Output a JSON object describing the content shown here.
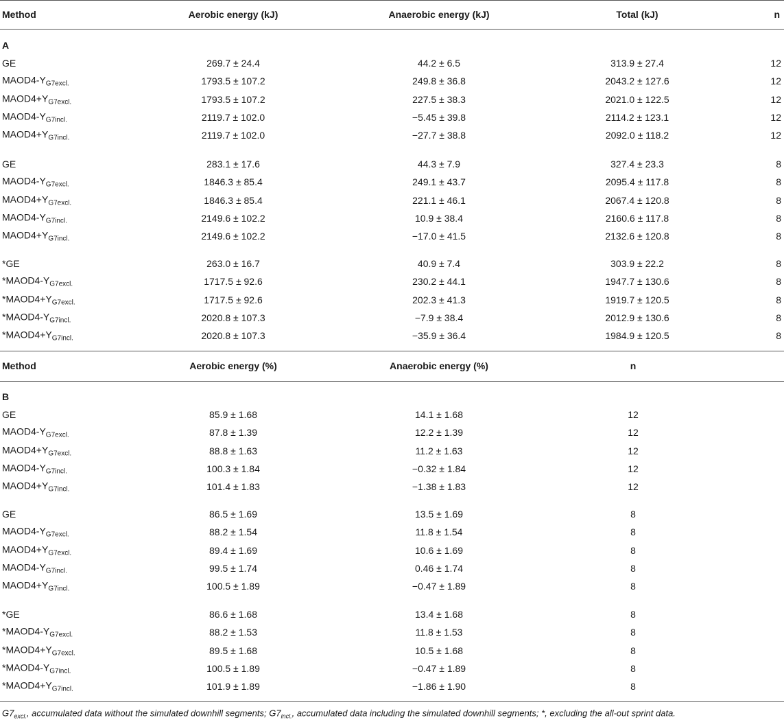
{
  "table_a": {
    "headers": [
      "Method",
      "Aerobic energy (kJ)",
      "Anaerobic energy (kJ)",
      "Total (kJ)",
      "n"
    ],
    "section_label": "A",
    "groups": [
      [
        {
          "prefix": "",
          "method": "GE",
          "sub": "",
          "aerobic": "269.7 ± 24.4",
          "anaerobic": "44.2 ± 6.5",
          "total": "313.9 ± 27.4",
          "n": "12"
        },
        {
          "prefix": "",
          "method": "MAOD4-Y",
          "sub": "G7excl.",
          "aerobic": "1793.5 ± 107.2",
          "anaerobic": "249.8 ± 36.8",
          "total": "2043.2 ± 127.6",
          "n": "12"
        },
        {
          "prefix": "",
          "method": "MAOD4+Y",
          "sub": "G7excl.",
          "aerobic": "1793.5 ± 107.2",
          "anaerobic": "227.5 ± 38.3",
          "total": "2021.0 ± 122.5",
          "n": "12"
        },
        {
          "prefix": "",
          "method": "MAOD4-Y",
          "sub": "G7incl.",
          "aerobic": "2119.7 ± 102.0",
          "anaerobic": "−5.45 ± 39.8",
          "total": "2114.2 ± 123.1",
          "n": "12"
        },
        {
          "prefix": "",
          "method": "MAOD4+Y",
          "sub": "G7incl.",
          "aerobic": "2119.7 ± 102.0",
          "anaerobic": "−27.7 ± 38.8",
          "total": "2092.0 ± 118.2",
          "n": "12"
        }
      ],
      [
        {
          "prefix": "",
          "method": "GE",
          "sub": "",
          "aerobic": "283.1 ± 17.6",
          "anaerobic": "44.3 ± 7.9",
          "total": "327.4 ± 23.3",
          "n": "8"
        },
        {
          "prefix": "",
          "method": "MAOD4-Y",
          "sub": "G7excl.",
          "aerobic": "1846.3 ± 85.4",
          "anaerobic": "249.1 ± 43.7",
          "total": "2095.4 ± 117.8",
          "n": "8"
        },
        {
          "prefix": "",
          "method": "MAOD4+Y",
          "sub": "G7excl.",
          "aerobic": "1846.3 ± 85.4",
          "anaerobic": "221.1 ± 46.1",
          "total": "2067.4 ± 120.8",
          "n": "8"
        },
        {
          "prefix": "",
          "method": "MAOD4-Y",
          "sub": "G7incl.",
          "aerobic": "2149.6 ± 102.2",
          "anaerobic": "10.9 ± 38.4",
          "total": "2160.6 ± 117.8",
          "n": "8"
        },
        {
          "prefix": "",
          "method": "MAOD4+Y",
          "sub": "G7incl.",
          "aerobic": "2149.6 ± 102.2",
          "anaerobic": "−17.0 ± 41.5",
          "total": "2132.6 ± 120.8",
          "n": "8"
        }
      ],
      [
        {
          "prefix": "*",
          "method": "GE",
          "sub": "",
          "aerobic": "263.0 ± 16.7",
          "anaerobic": "40.9 ± 7.4",
          "total": "303.9 ± 22.2",
          "n": "8"
        },
        {
          "prefix": "*",
          "method": "MAOD4-Y",
          "sub": "G7excl.",
          "aerobic": "1717.5 ± 92.6",
          "anaerobic": "230.2 ± 44.1",
          "total": "1947.7 ± 130.6",
          "n": "8"
        },
        {
          "prefix": "*",
          "method": "MAOD4+Y",
          "sub": "G7excl.",
          "aerobic": "1717.5 ± 92.6",
          "anaerobic": "202.3 ± 41.3",
          "total": "1919.7 ± 120.5",
          "n": "8"
        },
        {
          "prefix": "*",
          "method": "MAOD4-Y",
          "sub": "G7incl.",
          "aerobic": "2020.8 ± 107.3",
          "anaerobic": "−7.9 ± 38.4",
          "total": "2012.9 ± 130.6",
          "n": "8"
        },
        {
          "prefix": "*",
          "method": "MAOD4+Y",
          "sub": "G7incl.",
          "aerobic": "2020.8 ± 107.3",
          "anaerobic": "−35.9 ± 36.4",
          "total": "1984.9 ± 120.5",
          "n": "8"
        }
      ]
    ]
  },
  "table_b": {
    "headers": [
      "Method",
      "Aerobic energy (%)",
      "Anaerobic energy (%)",
      "n"
    ],
    "section_label": "B",
    "groups": [
      [
        {
          "prefix": "",
          "method": "GE",
          "sub": "",
          "aerobic": "85.9 ± 1.68",
          "anaerobic": "14.1 ± 1.68",
          "n": "12"
        },
        {
          "prefix": "",
          "method": "MAOD4-Y",
          "sub": "G7excl.",
          "aerobic": "87.8 ± 1.39",
          "anaerobic": "12.2 ± 1.39",
          "n": "12"
        },
        {
          "prefix": "",
          "method": "MAOD4+Y",
          "sub": "G7excl.",
          "aerobic": "88.8 ± 1.63",
          "anaerobic": "11.2 ± 1.63",
          "n": "12"
        },
        {
          "prefix": "",
          "method": "MAOD4-Y",
          "sub": "G7incl.",
          "aerobic": "100.3 ± 1.84",
          "anaerobic": "−0.32 ± 1.84",
          "n": "12"
        },
        {
          "prefix": "",
          "method": "MAOD4+Y",
          "sub": "G7incl.",
          "aerobic": "101.4 ± 1.83",
          "anaerobic": "−1.38 ± 1.83",
          "n": "12"
        }
      ],
      [
        {
          "prefix": "",
          "method": "GE",
          "sub": "",
          "aerobic": "86.5 ± 1.69",
          "anaerobic": "13.5 ± 1.69",
          "n": "8"
        },
        {
          "prefix": "",
          "method": "MAOD4-Y",
          "sub": "G7excl.",
          "aerobic": "88.2 ± 1.54",
          "anaerobic": "11.8 ± 1.54",
          "n": "8"
        },
        {
          "prefix": "",
          "method": "MAOD4+Y",
          "sub": "G7excl.",
          "aerobic": "89.4 ± 1.69",
          "anaerobic": "10.6 ± 1.69",
          "n": "8"
        },
        {
          "prefix": "",
          "method": "MAOD4-Y",
          "sub": "G7incl.",
          "aerobic": "99.5 ± 1.74",
          "anaerobic": "0.46 ± 1.74",
          "n": "8"
        },
        {
          "prefix": "",
          "method": "MAOD4+Y",
          "sub": "G7incl.",
          "aerobic": "100.5 ± 1.89",
          "anaerobic": "−0.47 ± 1.89",
          "n": "8"
        }
      ],
      [
        {
          "prefix": "*",
          "method": "GE",
          "sub": "",
          "aerobic": "86.6 ± 1.68",
          "anaerobic": "13.4 ± 1.68",
          "n": "8"
        },
        {
          "prefix": "*",
          "method": "MAOD4-Y",
          "sub": "G7excl.",
          "aerobic": "88.2 ± 1.53",
          "anaerobic": "11.8 ± 1.53",
          "n": "8"
        },
        {
          "prefix": "*",
          "method": "MAOD4+Y",
          "sub": "G7excl.",
          "aerobic": "89.5 ± 1.68",
          "anaerobic": "10.5 ± 1.68",
          "n": "8"
        },
        {
          "prefix": "*",
          "method": "MAOD4-Y",
          "sub": "G7incl.",
          "aerobic": "100.5 ± 1.89",
          "anaerobic": "−0.47 ± 1.89",
          "n": "8"
        },
        {
          "prefix": "*",
          "method": "MAOD4+Y",
          "sub": "G7incl.",
          "aerobic": "101.9 ± 1.89",
          "anaerobic": "−1.86 ± 1.90",
          "n": "8"
        }
      ]
    ]
  },
  "footnote": {
    "excl_term": "G7",
    "excl_sub": "excl.",
    "excl_text": ", accumulated data without the simulated downhill segments; ",
    "incl_term": "G7",
    "incl_sub": "incl.",
    "incl_text": ", accumulated data including the simulated downhill segments; *, excluding the all-out sprint data."
  }
}
